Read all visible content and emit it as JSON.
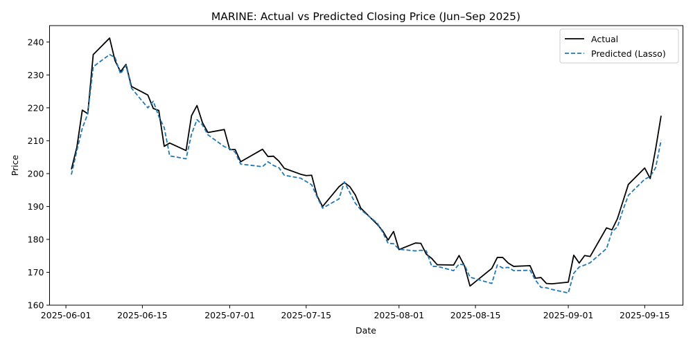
{
  "chart_data": {
    "type": "line",
    "title": "MARINE: Actual vs Predicted Closing Price (Jun–Sep 2025)",
    "xlabel": "Date",
    "ylabel": "Price",
    "x_ticks": [
      "2025-06-01",
      "2025-06-15",
      "2025-07-01",
      "2025-07-15",
      "2025-08-01",
      "2025-08-15",
      "2025-09-01",
      "2025-09-15"
    ],
    "y_ticks": [
      160,
      170,
      180,
      190,
      200,
      210,
      220,
      230,
      240
    ],
    "xlim": [
      "2025-05-29",
      "2025-09-22"
    ],
    "ylim": [
      160,
      245
    ],
    "grid": false,
    "legend_position": "top-right",
    "colors": {
      "actual": "#000000",
      "predicted": "#1f77b4"
    },
    "x": [
      "2025-06-02",
      "2025-06-03",
      "2025-06-04",
      "2025-06-05",
      "2025-06-06",
      "2025-06-09",
      "2025-06-10",
      "2025-06-11",
      "2025-06-12",
      "2025-06-13",
      "2025-06-16",
      "2025-06-17",
      "2025-06-18",
      "2025-06-19",
      "2025-06-20",
      "2025-06-23",
      "2025-06-24",
      "2025-06-25",
      "2025-06-26",
      "2025-06-27",
      "2025-06-30",
      "2025-07-01",
      "2025-07-02",
      "2025-07-03",
      "2025-07-07",
      "2025-07-08",
      "2025-07-09",
      "2025-07-10",
      "2025-07-11",
      "2025-07-14",
      "2025-07-15",
      "2025-07-16",
      "2025-07-17",
      "2025-07-18",
      "2025-07-21",
      "2025-07-22",
      "2025-07-23",
      "2025-07-24",
      "2025-07-25",
      "2025-07-28",
      "2025-07-29",
      "2025-07-30",
      "2025-07-31",
      "2025-08-01",
      "2025-08-04",
      "2025-08-05",
      "2025-08-06",
      "2025-08-07",
      "2025-08-08",
      "2025-08-11",
      "2025-08-12",
      "2025-08-13",
      "2025-08-14",
      "2025-08-18",
      "2025-08-19",
      "2025-08-20",
      "2025-08-21",
      "2025-08-22",
      "2025-08-25",
      "2025-08-26",
      "2025-08-27",
      "2025-08-28",
      "2025-08-29",
      "2025-09-01",
      "2025-09-02",
      "2025-09-03",
      "2025-09-04",
      "2025-09-05",
      "2025-09-08",
      "2025-09-09",
      "2025-09-10",
      "2025-09-11",
      "2025-09-12",
      "2025-09-15",
      "2025-09-16",
      "2025-09-17",
      "2025-09-18"
    ],
    "series": [
      {
        "name": "Actual",
        "values": [
          201.3,
          208.0,
          219.3,
          218.2,
          236.2,
          241.2,
          234.3,
          231.0,
          233.2,
          226.5,
          223.9,
          219.8,
          219.2,
          208.3,
          209.3,
          207.0,
          217.6,
          220.7,
          215.5,
          212.5,
          213.4,
          207.3,
          207.3,
          203.6,
          207.4,
          205.2,
          205.3,
          203.8,
          201.6,
          199.8,
          199.4,
          199.5,
          193.2,
          190.0,
          196.0,
          197.3,
          196.0,
          193.5,
          189.5,
          184.6,
          182.6,
          179.8,
          182.4,
          176.9,
          178.9,
          178.8,
          175.5,
          174.2,
          172.3,
          172.2,
          175.1,
          171.9,
          165.8,
          171.2,
          174.5,
          174.5,
          172.8,
          171.8,
          172.0,
          168.2,
          168.4,
          166.6,
          166.5,
          167.0,
          175.2,
          172.8,
          175.1,
          174.8,
          183.5,
          182.9,
          186.3,
          191.5,
          196.7,
          201.7,
          198.5,
          207.5,
          217.6
        ]
      },
      {
        "name": "Predicted (Lasso)",
        "values": [
          199.7,
          207.0,
          213.8,
          218.2,
          232.5,
          236.2,
          235.3,
          230.3,
          232.9,
          226.0,
          220.0,
          222.0,
          217.4,
          214.0,
          205.4,
          204.5,
          212.0,
          216.4,
          214.8,
          211.8,
          208.2,
          207.6,
          206.5,
          202.9,
          202.1,
          203.6,
          202.5,
          201.8,
          199.5,
          198.6,
          197.6,
          196.6,
          192.9,
          189.5,
          192.3,
          197.5,
          194.2,
          191.0,
          189.0,
          185.0,
          182.2,
          178.8,
          178.7,
          177.0,
          176.5,
          176.7,
          176.5,
          171.8,
          171.8,
          170.5,
          172.5,
          172.2,
          168.5,
          166.6,
          172.2,
          171.3,
          171.5,
          170.5,
          170.6,
          167.6,
          165.4,
          165.3,
          164.8,
          163.7,
          169.7,
          171.6,
          172.2,
          172.9,
          177.2,
          182.3,
          183.8,
          188.9,
          193.4,
          198.3,
          199.1,
          201.8,
          210.2
        ]
      }
    ]
  }
}
